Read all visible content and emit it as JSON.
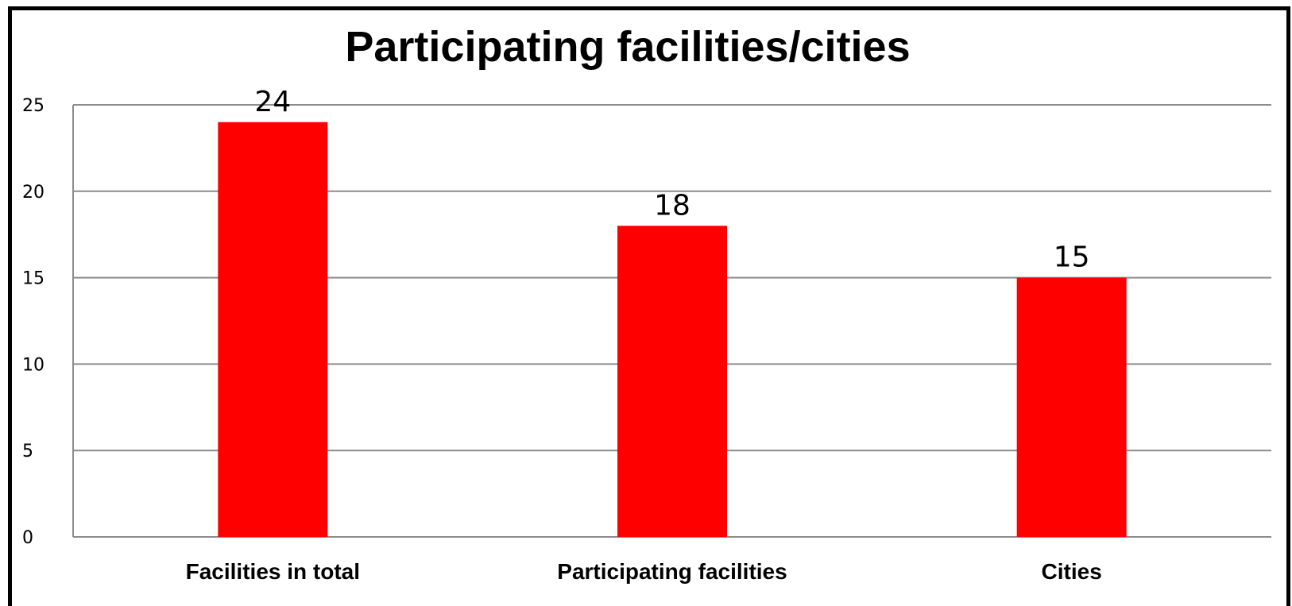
{
  "chart_data": {
    "type": "bar",
    "title": "Participating facilities/cities",
    "categories": [
      "Facilities in total",
      "Participating facilities",
      "Cities"
    ],
    "values": [
      24,
      18,
      15
    ],
    "yticks": [
      "0",
      "5",
      "10",
      "15",
      "20",
      "25"
    ],
    "ylim": [
      0,
      25
    ],
    "grid": true,
    "legend": "none",
    "colors": {
      "bar": "#ff0000",
      "grid": "#8c8c8c",
      "axis": "#8c8c8c"
    }
  }
}
